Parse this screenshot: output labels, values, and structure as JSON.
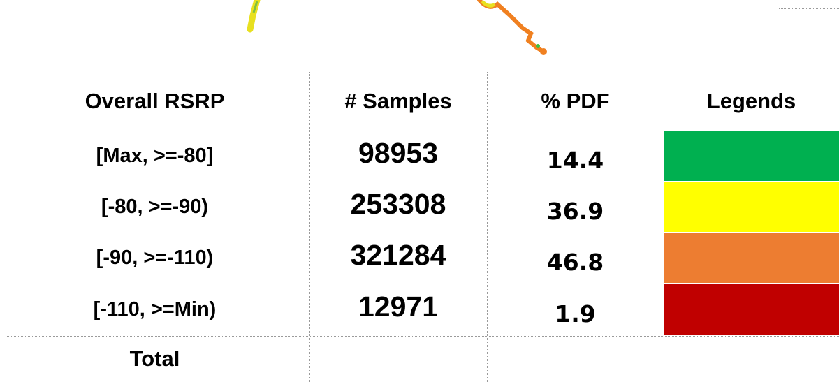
{
  "table": {
    "header": [
      "Overall RSRP",
      "# Samples",
      "% PDF",
      "Legends"
    ],
    "rows": [
      {
        "label": "[Max, >=-80]",
        "samples": 98953,
        "pdf": 14.4,
        "color": "#00b050"
      },
      {
        "label": "[-80, >=-90)",
        "samples": 253308,
        "pdf": 36.9,
        "color": "#ffff00"
      },
      {
        "label": "[-90, >=-110)",
        "samples": 321284,
        "pdf": 46.8,
        "color": "#ed7d31"
      },
      {
        "label": "[-110, >=Min)",
        "samples": 12971,
        "pdf": 1.9,
        "color": "#c00000"
      }
    ],
    "total_label": "Total"
  }
}
